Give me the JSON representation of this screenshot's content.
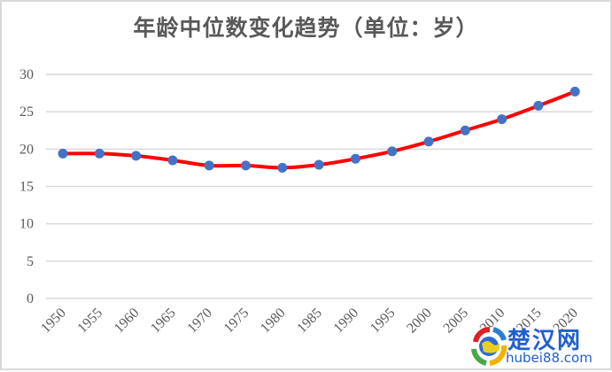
{
  "chart_data": {
    "type": "line",
    "title": "年龄中位数变化趋势（单位：岁）",
    "xlabel": "",
    "ylabel": "",
    "categories": [
      "1950",
      "1955",
      "1960",
      "1965",
      "1970",
      "1975",
      "1980",
      "1985",
      "1990",
      "1995",
      "2000",
      "2005",
      "2010",
      "2015",
      "2020"
    ],
    "series": [
      {
        "name": "年龄中位数",
        "values": [
          19.4,
          19.4,
          19.1,
          18.5,
          17.8,
          17.8,
          17.5,
          17.9,
          18.7,
          19.7,
          21.0,
          22.5,
          24.0,
          25.8,
          27.7
        ],
        "line_color": "#ff0000",
        "marker_color": "#4472c4"
      }
    ],
    "ylim": [
      0,
      30
    ],
    "yticks": [
      0,
      5,
      10,
      15,
      20,
      25,
      30
    ],
    "grid": true,
    "legend": "none"
  },
  "header": {
    "title": "年龄中位数变化趋势（单位：岁）"
  },
  "watermark": {
    "name_cn": "楚汉网",
    "site": "hubei88.com"
  },
  "colors": {
    "line": "#ff0000",
    "marker": "#4472c4",
    "grid": "#d9d9d9",
    "text": "#595959"
  }
}
